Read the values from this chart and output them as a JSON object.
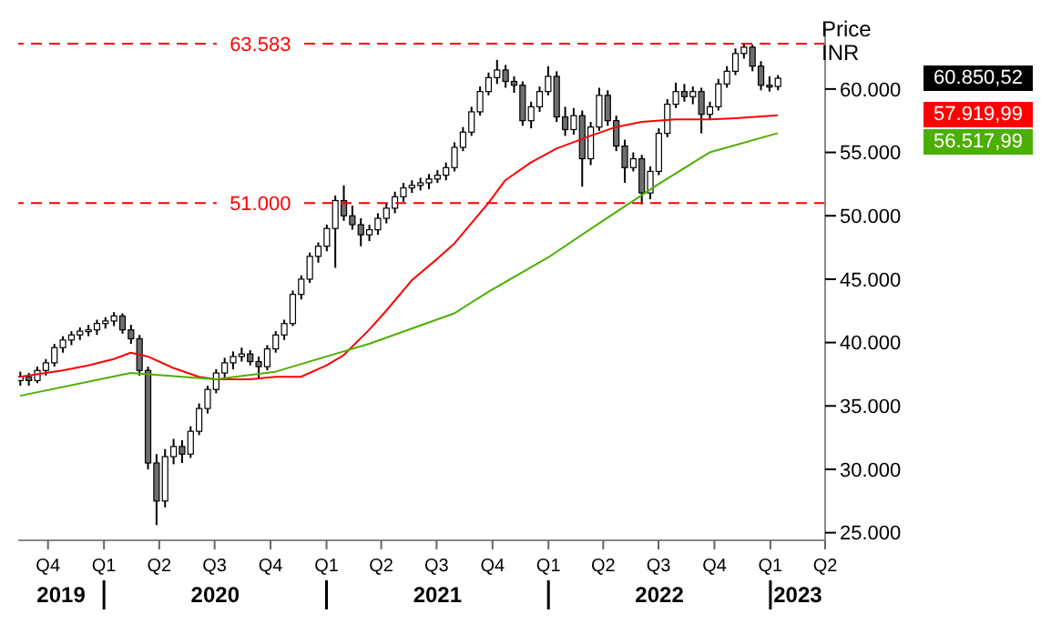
{
  "chart_data": {
    "type": "candlestick",
    "ylabel": "Price",
    "x": [
      "2019-08-16",
      "2019-08-30",
      "2019-09-13",
      "2019-09-27",
      "2019-10-11",
      "2019-10-25",
      "2019-11-08",
      "2019-11-22",
      "2019-12-06",
      "2019-12-20",
      "2020-01-03",
      "2020-01-17",
      "2020-01-31",
      "2020-02-14",
      "2020-02-28",
      "2020-03-13",
      "2020-03-27",
      "2020-04-10",
      "2020-04-24",
      "2020-05-08",
      "2020-05-22",
      "2020-06-05",
      "2020-06-19",
      "2020-07-03",
      "2020-07-17",
      "2020-07-31",
      "2020-08-14",
      "2020-08-28",
      "2020-09-11",
      "2020-09-25",
      "2020-10-09",
      "2020-10-23",
      "2020-11-06",
      "2020-11-20",
      "2020-12-04",
      "2020-12-18",
      "2021-01-01",
      "2021-01-15",
      "2021-01-29",
      "2021-02-12",
      "2021-02-26",
      "2021-03-12",
      "2021-03-26",
      "2021-04-09",
      "2021-04-23",
      "2021-05-07",
      "2021-05-21",
      "2021-06-04",
      "2021-06-18",
      "2021-07-02",
      "2021-07-16",
      "2021-07-30",
      "2021-08-13",
      "2021-08-27",
      "2021-09-10",
      "2021-09-24",
      "2021-10-08",
      "2021-10-22",
      "2021-11-05",
      "2021-11-19",
      "2021-12-03",
      "2021-12-17",
      "2021-12-31",
      "2022-01-14",
      "2022-01-28",
      "2022-02-11",
      "2022-02-25",
      "2022-03-11",
      "2022-03-25",
      "2022-04-08",
      "2022-04-22",
      "2022-05-06",
      "2022-05-20",
      "2022-06-03",
      "2022-06-17",
      "2022-07-01",
      "2022-07-15",
      "2022-07-29",
      "2022-08-12",
      "2022-08-26",
      "2022-09-09",
      "2022-09-23",
      "2022-10-07",
      "2022-10-21",
      "2022-11-04",
      "2022-11-18",
      "2022-12-02",
      "2022-12-16",
      "2022-12-30",
      "2023-01-13"
    ],
    "ohlc": [
      [
        37000,
        37700,
        36600,
        37300
      ],
      [
        37300,
        37600,
        36600,
        37000
      ],
      [
        37000,
        38100,
        36800,
        37800
      ],
      [
        37800,
        38700,
        37400,
        38400
      ],
      [
        38400,
        39900,
        38100,
        39600
      ],
      [
        39600,
        40500,
        39200,
        40200
      ],
      [
        40200,
        40900,
        39800,
        40600
      ],
      [
        40600,
        41200,
        40200,
        40900
      ],
      [
        40900,
        41400,
        40500,
        41000
      ],
      [
        41000,
        41800,
        40600,
        41500
      ],
      [
        41500,
        42000,
        41100,
        41700
      ],
      [
        41700,
        42400,
        41300,
        42100
      ],
      [
        42100,
        42300,
        40700,
        41000
      ],
      [
        41000,
        41400,
        39900,
        40300
      ],
      [
        40300,
        40600,
        37400,
        37800
      ],
      [
        37800,
        38100,
        30000,
        30500
      ],
      [
        30500,
        31200,
        25600,
        27500
      ],
      [
        27500,
        31600,
        27000,
        31000
      ],
      [
        31000,
        32400,
        30400,
        31800
      ],
      [
        31800,
        32300,
        30500,
        31200
      ],
      [
        31200,
        33400,
        30900,
        33000
      ],
      [
        33000,
        35200,
        32700,
        34800
      ],
      [
        34800,
        36600,
        34400,
        36300
      ],
      [
        36300,
        37900,
        36000,
        37600
      ],
      [
        37600,
        38800,
        37200,
        38400
      ],
      [
        38400,
        39300,
        37900,
        38900
      ],
      [
        38900,
        39600,
        38500,
        39100
      ],
      [
        39100,
        39400,
        38200,
        38500
      ],
      [
        38500,
        38900,
        37200,
        38100
      ],
      [
        38100,
        39800,
        37800,
        39500
      ],
      [
        39500,
        40900,
        39200,
        40600
      ],
      [
        40600,
        41800,
        40200,
        41500
      ],
      [
        41500,
        44100,
        41300,
        43800
      ],
      [
        43800,
        45300,
        43400,
        45000
      ],
      [
        45000,
        47100,
        44700,
        46800
      ],
      [
        46800,
        47900,
        46300,
        47600
      ],
      [
        47600,
        49300,
        47200,
        49000
      ],
      [
        49000,
        51600,
        45900,
        51200
      ],
      [
        51200,
        52400,
        49600,
        50000
      ],
      [
        50000,
        50800,
        48900,
        49300
      ],
      [
        49300,
        49800,
        47600,
        48500
      ],
      [
        48500,
        49300,
        48000,
        48900
      ],
      [
        48900,
        50200,
        48500,
        49800
      ],
      [
        49800,
        51000,
        49400,
        50600
      ],
      [
        50600,
        51900,
        50200,
        51500
      ],
      [
        51500,
        52600,
        51100,
        52200
      ],
      [
        52200,
        52800,
        51800,
        52400
      ],
      [
        52400,
        53000,
        52000,
        52600
      ],
      [
        52600,
        53300,
        52100,
        52900
      ],
      [
        52900,
        53600,
        52600,
        53200
      ],
      [
        53200,
        54200,
        52800,
        53800
      ],
      [
        53800,
        55800,
        53500,
        55400
      ],
      [
        55400,
        57000,
        55100,
        56600
      ],
      [
        56600,
        58600,
        56300,
        58200
      ],
      [
        58200,
        60200,
        57900,
        59800
      ],
      [
        59800,
        61300,
        59500,
        60900
      ],
      [
        60900,
        62300,
        60400,
        61500
      ],
      [
        61500,
        61900,
        60100,
        60600
      ],
      [
        60600,
        61000,
        59700,
        60300
      ],
      [
        60300,
        60600,
        57100,
        57500
      ],
      [
        57500,
        59000,
        56900,
        58600
      ],
      [
        58600,
        60200,
        58200,
        59800
      ],
      [
        59800,
        61800,
        59500,
        61000
      ],
      [
        61000,
        61400,
        57400,
        57800
      ],
      [
        57800,
        58600,
        56300,
        56800
      ],
      [
        56800,
        58500,
        56400,
        57900
      ],
      [
        57900,
        58300,
        52300,
        54500
      ],
      [
        54500,
        57400,
        54000,
        57000
      ],
      [
        57000,
        60100,
        56700,
        59500
      ],
      [
        59500,
        59900,
        57100,
        57500
      ],
      [
        57500,
        57900,
        55100,
        55500
      ],
      [
        55500,
        56000,
        52600,
        53800
      ],
      [
        53800,
        55000,
        53500,
        54500
      ],
      [
        54500,
        54800,
        50900,
        51800
      ],
      [
        51800,
        53900,
        51300,
        53500
      ],
      [
        53500,
        56900,
        53200,
        56500
      ],
      [
        56500,
        59200,
        56200,
        58800
      ],
      [
        58800,
        60500,
        58500,
        59800
      ],
      [
        59800,
        60400,
        59000,
        59400
      ],
      [
        59400,
        60200,
        58800,
        59800
      ],
      [
        59800,
        60100,
        56500,
        58000
      ],
      [
        58000,
        59000,
        57600,
        58600
      ],
      [
        58600,
        60800,
        58300,
        60400
      ],
      [
        60400,
        61800,
        60100,
        61400
      ],
      [
        61400,
        63200,
        61100,
        62800
      ],
      [
        62800,
        63583,
        62400,
        63300
      ],
      [
        63300,
        63500,
        61400,
        61800
      ],
      [
        61800,
        62200,
        59900,
        60300
      ],
      [
        60300,
        61000,
        59800,
        60200
      ],
      [
        60200,
        61100,
        59900,
        60850.52
      ]
    ],
    "series": [
      {
        "type": "line",
        "color": "#ff0000",
        "x": [
          "2019-08-16",
          "2019-10-25",
          "2019-12-06",
          "2020-01-17",
          "2020-02-14",
          "2020-03-13",
          "2020-04-24",
          "2020-06-05",
          "2020-07-03",
          "2020-08-28",
          "2020-10-09",
          "2020-11-20",
          "2021-01-01",
          "2021-01-29",
          "2021-03-12",
          "2021-04-09",
          "2021-05-21",
          "2021-07-02",
          "2021-07-30",
          "2021-09-24",
          "2021-10-22",
          "2021-12-03",
          "2022-01-14",
          "2022-03-11",
          "2022-04-22",
          "2022-06-03",
          "2022-07-29",
          "2022-09-23",
          "2022-11-04",
          "2023-01-13"
        ],
        "values": [
          37300,
          37800,
          38200,
          38700,
          39200,
          38900,
          38000,
          37300,
          37100,
          37100,
          37300,
          37300,
          38200,
          39000,
          41000,
          42500,
          44900,
          46600,
          47800,
          51000,
          52800,
          54200,
          55300,
          56300,
          57000,
          57400,
          57600,
          57600,
          57700,
          57919.99
        ]
      },
      {
        "type": "line",
        "color": "#4caf00",
        "x": [
          "2019-08-16",
          "2020-02-14",
          "2020-07-03",
          "2020-10-09",
          "2021-01-15",
          "2021-03-12",
          "2021-07-30",
          "2021-09-24",
          "2021-12-31",
          "2022-03-25",
          "2022-07-01",
          "2022-09-23",
          "2023-01-13"
        ],
        "values": [
          35800,
          37600,
          37100,
          37700,
          39100,
          39900,
          42300,
          44000,
          46700,
          49400,
          52500,
          55000,
          56517.99
        ]
      }
    ],
    "xlim": [
      "2019-08-13",
      "2023-04-01"
    ],
    "xticks": [
      {
        "value": "2019-10-01",
        "label": "Q4"
      },
      {
        "value": "2020-01-01",
        "label": "Q1"
      },
      {
        "value": "2020-04-01",
        "label": "Q2"
      },
      {
        "value": "2020-07-01",
        "label": "Q3"
      },
      {
        "value": "2020-10-01",
        "label": "Q4"
      },
      {
        "value": "2021-01-01",
        "label": "Q1"
      },
      {
        "value": "2021-04-01",
        "label": "Q2"
      },
      {
        "value": "2021-07-01",
        "label": "Q3"
      },
      {
        "value": "2021-10-01",
        "label": "Q4"
      },
      {
        "value": "2022-01-01",
        "label": "Q1"
      },
      {
        "value": "2022-04-01",
        "label": "Q2"
      },
      {
        "value": "2022-07-01",
        "label": "Q3"
      },
      {
        "value": "2022-10-01",
        "label": "Q4"
      },
      {
        "value": "2023-01-01",
        "label": "Q1"
      },
      {
        "value": "2023-04-01",
        "label": "Q2"
      }
    ],
    "ylim": [
      24400,
      65300
    ],
    "yticks": [
      {
        "value": 25000,
        "label": "25.000"
      },
      {
        "value": 30000,
        "label": "30.000"
      },
      {
        "value": 35000,
        "label": "35.000"
      },
      {
        "value": 40000,
        "label": "40.000"
      },
      {
        "value": 45000,
        "label": "45.000"
      },
      {
        "value": 50000,
        "label": "50.000"
      },
      {
        "value": 55000,
        "label": "55.000"
      },
      {
        "value": 60000,
        "label": "60.000"
      }
    ],
    "ref_lines": [
      {
        "axis": "y",
        "value": 63583,
        "label": "63.583",
        "color": "#ff0000",
        "line_style": "dashed"
      },
      {
        "axis": "y",
        "value": 51000,
        "label": "51.000",
        "color": "#ff0000",
        "line_style": "dashed"
      }
    ],
    "annotations": [
      "INR",
      "60.850,52",
      "57.919,99",
      "56.517,99",
      "2019",
      "2020",
      "2021",
      "2022",
      "2023"
    ]
  }
}
